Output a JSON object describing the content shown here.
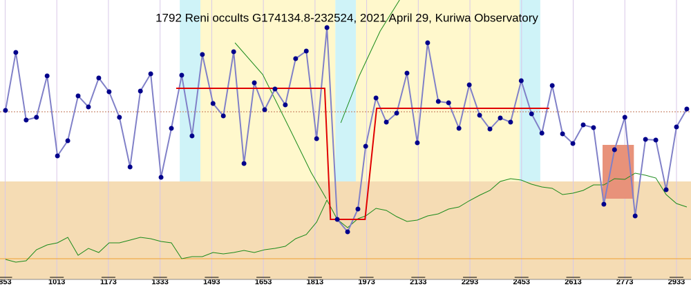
{
  "chart_data": {
    "type": "line",
    "title": "1792 Reni occults G174134.8-232524, 2021 April 29, Kuriwa Observatory",
    "xlim": [
      837,
      2978
    ],
    "ylim": [
      0,
      405
    ],
    "xticks": [
      853,
      1013,
      1173,
      1333,
      1493,
      1653,
      1813,
      1973,
      2133,
      2293,
      2453,
      2613,
      2773,
      2933
    ],
    "grid": true,
    "regions": [
      {
        "x0": 1394,
        "x1": 1458,
        "color": "#cff3f8"
      },
      {
        "x0": 1458,
        "x1": 1876,
        "color": "#fff8cc"
      },
      {
        "x0": 1876,
        "x1": 1940,
        "color": "#cff3f8"
      },
      {
        "x0": 1940,
        "x1": 2447,
        "color": "#fff8cc"
      },
      {
        "x0": 2447,
        "x1": 2511,
        "color": "#cff3f8"
      }
    ],
    "band_top": 142,
    "band_color": "#f5dcb4",
    "baseline_level": 30,
    "baseline_color": "#f0a030",
    "reference_level": 243,
    "box": {
      "x0": 2704,
      "x1": 2801,
      "y0": 117,
      "y1": 195,
      "color": "#e8927a"
    },
    "x": [
      854,
      886,
      918,
      950,
      983,
      1015,
      1047,
      1079,
      1111,
      1143,
      1175,
      1207,
      1240,
      1272,
      1304,
      1336,
      1368,
      1400,
      1432,
      1464,
      1497,
      1529,
      1561,
      1593,
      1625,
      1657,
      1689,
      1721,
      1753,
      1786,
      1818,
      1850,
      1882,
      1914,
      1946,
      1970,
      2002,
      2034,
      2066,
      2098,
      2130,
      2162,
      2195,
      2227,
      2259,
      2291,
      2323,
      2355,
      2387,
      2419,
      2452,
      2484,
      2516,
      2548,
      2580,
      2612,
      2644,
      2676,
      2708,
      2741,
      2773,
      2805,
      2837,
      2869,
      2901,
      2933,
      2965
    ],
    "series": [
      {
        "color": "#8080c8",
        "marker_color": "#00008b",
        "values": [
          245,
          329,
          231,
          235,
          295,
          179,
          201,
          266,
          250,
          292,
          272,
          235,
          163,
          273,
          298,
          148,
          219,
          296,
          208,
          326,
          255,
          237,
          330,
          168,
          285,
          246,
          276,
          253,
          320,
          331,
          204,
          365,
          87,
          69,
          102,
          193,
          263,
          228,
          241,
          299,
          198,
          343,
          258,
          256,
          219,
          282,
          238,
          218,
          234,
          228,
          288,
          240,
          212,
          281,
          211,
          197,
          224,
          220,
          109,
          188,
          235,
          92,
          203,
          202,
          130,
          221,
          247
        ]
      },
      {
        "color": "#1a8a1a",
        "values": [
          29,
          25,
          27,
          43,
          50,
          53,
          61,
          35,
          45,
          39,
          53,
          53,
          57,
          61,
          59,
          55,
          53,
          30,
          33,
          33,
          39,
          37,
          39,
          42,
          39,
          43,
          45,
          48,
          59,
          65,
          83,
          115,
          87,
          75,
          88,
          92,
          103,
          100,
          91,
          84,
          86,
          92,
          95,
          102,
          105,
          114,
          122,
          129,
          142,
          146,
          144,
          138,
          134,
          132,
          123,
          125,
          129,
          137,
          137,
          146,
          145,
          154,
          151,
          147,
          123,
          110,
          105
        ]
      }
    ],
    "extra_lines": [
      {
        "color": "#1a8a1a",
        "x": [
          1565,
          1651,
          1736,
          1801,
          1848
        ],
        "values": [
          343,
          297,
          217,
          155,
          117
        ]
      },
      {
        "color": "#1a8a1a",
        "x": [
          1893,
          1950,
          2015,
          2075
        ],
        "values": [
          227,
          295,
          360,
          405
        ]
      }
    ],
    "model": {
      "color": "#e00000",
      "x": [
        1383,
        1843,
        1861,
        1968,
        2004,
        2539
      ],
      "values": [
        277,
        277,
        87,
        87,
        248,
        248
      ]
    }
  }
}
